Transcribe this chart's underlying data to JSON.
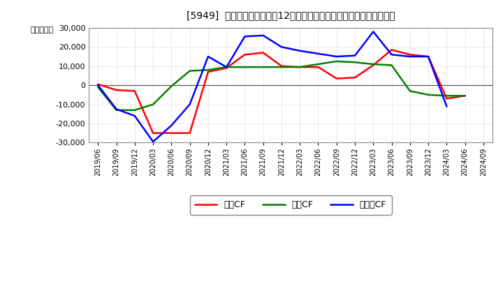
{
  "title": "[5949]  キャッシュフローの12か月移動合計の対前年同期増減額の推移",
  "ylabel": "（百万円）",
  "dates": [
    "2019/06",
    "2019/09",
    "2019/12",
    "2020/03",
    "2020/06",
    "2020/09",
    "2020/12",
    "2021/03",
    "2021/06",
    "2021/09",
    "2021/12",
    "2022/03",
    "2022/06",
    "2022/09",
    "2022/12",
    "2023/03",
    "2023/06",
    "2023/09",
    "2023/12",
    "2024/03",
    "2024/06",
    "2024/09"
  ],
  "operating_cf": [
    500,
    -2500,
    -3000,
    -25000,
    -25000,
    -25000,
    7000,
    9000,
    16000,
    17000,
    10000,
    9500,
    9500,
    3500,
    4000,
    10500,
    18500,
    16000,
    15000,
    -7000,
    -5500,
    null
  ],
  "investing_cf": [
    -1000,
    -13000,
    -13000,
    -10000,
    -500,
    7500,
    8000,
    9500,
    9500,
    9500,
    9500,
    9500,
    11000,
    12500,
    12000,
    11000,
    10500,
    -3000,
    -5000,
    -5500,
    -5500,
    null
  ],
  "free_cf": [
    0,
    -12500,
    -16000,
    -29500,
    -21000,
    -10000,
    15000,
    9500,
    25500,
    26000,
    20000,
    18000,
    16500,
    15000,
    15500,
    28000,
    16000,
    15000,
    15000,
    -11000,
    null,
    null
  ],
  "ylim": [
    -30000,
    30000
  ],
  "yticks": [
    -30000,
    -20000,
    -10000,
    0,
    10000,
    20000,
    30000
  ],
  "operating_color": "#ff0000",
  "investing_color": "#008000",
  "free_color": "#0000ff",
  "background_color": "#ffffff",
  "grid_color": "#999999",
  "legend_labels": [
    "営業CF",
    "投資CF",
    "フリーCF"
  ]
}
